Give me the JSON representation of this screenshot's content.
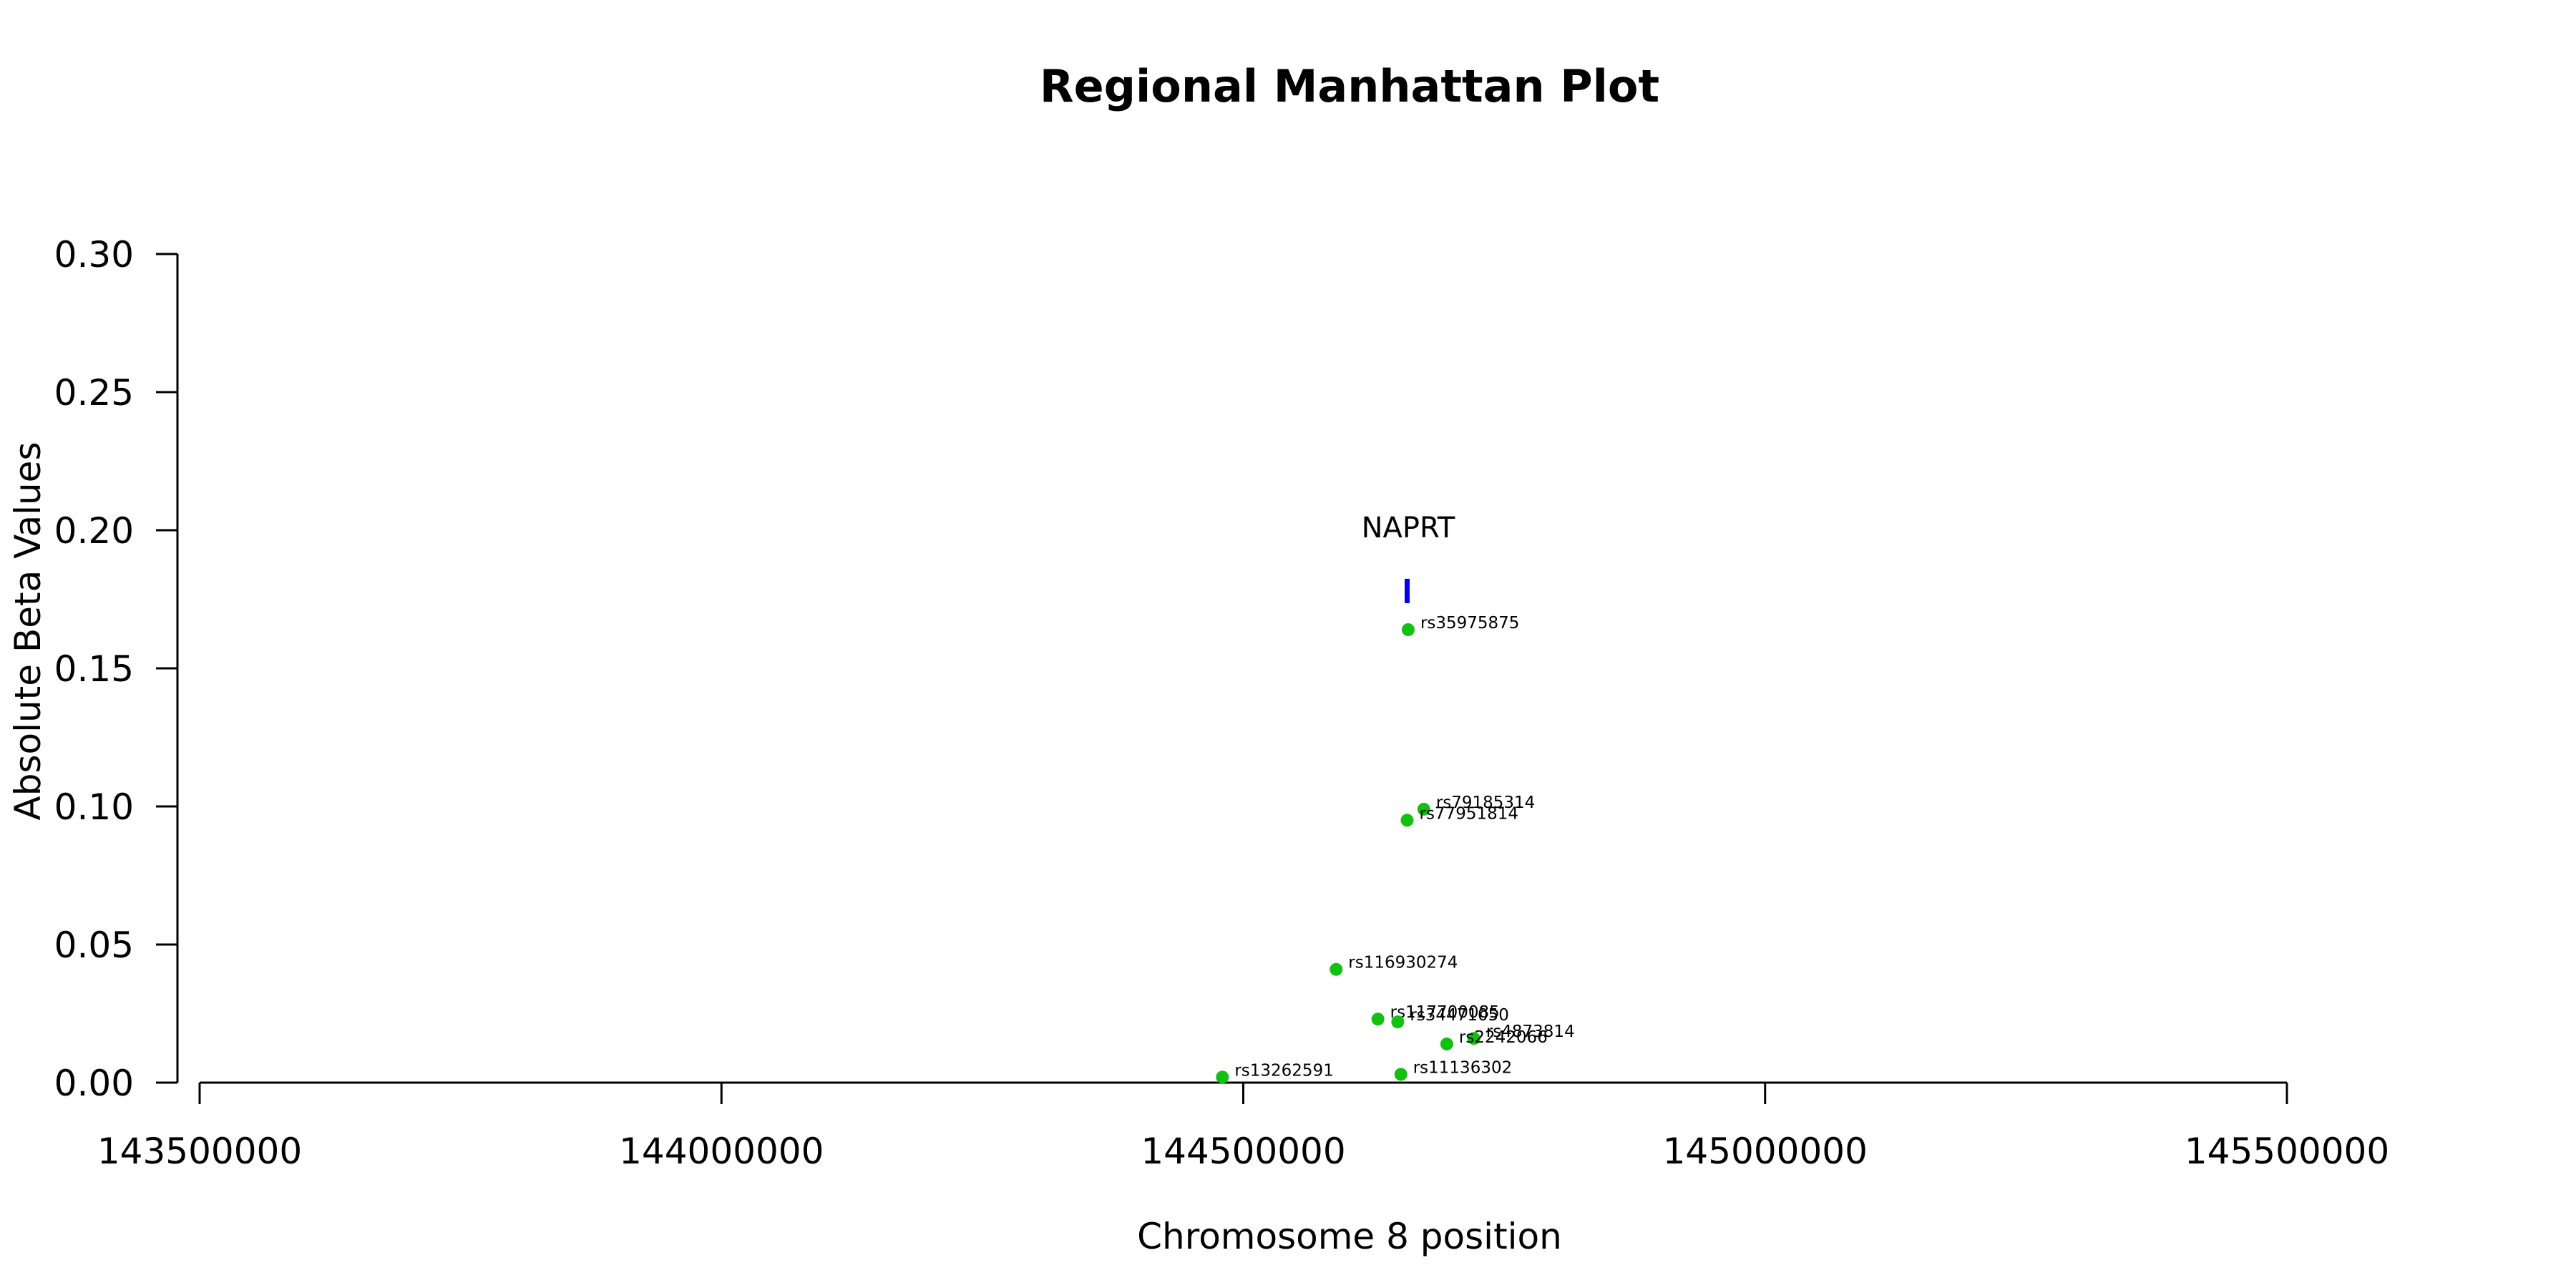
{
  "chart_data": {
    "type": "scatter",
    "title": "Regional Manhattan Plot",
    "xlabel": "Chromosome 8 position",
    "ylabel": "Absolute Beta Values",
    "xlim": [
      143500000,
      145500000
    ],
    "ylim": [
      0,
      0.3
    ],
    "x_ticks": [
      143500000,
      144000000,
      144500000,
      145000000,
      145500000
    ],
    "y_ticks": [
      "0.00",
      "0.05",
      "0.10",
      "0.15",
      "0.20",
      "0.25",
      "0.30"
    ],
    "grid": false,
    "legend": "none",
    "point_color": "#11c011",
    "gene_color": "#0000ee",
    "genes": [
      {
        "name": "NAPRT",
        "start": 144656000,
        "end": 144660000,
        "y": 0.178
      }
    ],
    "series": [
      {
        "points": [
          {
            "label": "rs35975875",
            "x": 144658000,
            "y": 0.164
          },
          {
            "label": "rs79185314",
            "x": 144673000,
            "y": 0.099
          },
          {
            "label": "rs77951814",
            "x": 144657000,
            "y": 0.095
          },
          {
            "label": "rs116930274",
            "x": 144589000,
            "y": 0.041
          },
          {
            "label": "rs117700085",
            "x": 144629000,
            "y": 0.023
          },
          {
            "label": "rs34471050",
            "x": 144648000,
            "y": 0.022
          },
          {
            "label": "rs4873814",
            "x": 144721000,
            "y": 0.016
          },
          {
            "label": "rs2242066",
            "x": 144695000,
            "y": 0.014
          },
          {
            "label": "rs11136302",
            "x": 144651000,
            "y": 0.003
          },
          {
            "label": "rs13262591",
            "x": 144480000,
            "y": 0.002
          }
        ]
      }
    ]
  }
}
